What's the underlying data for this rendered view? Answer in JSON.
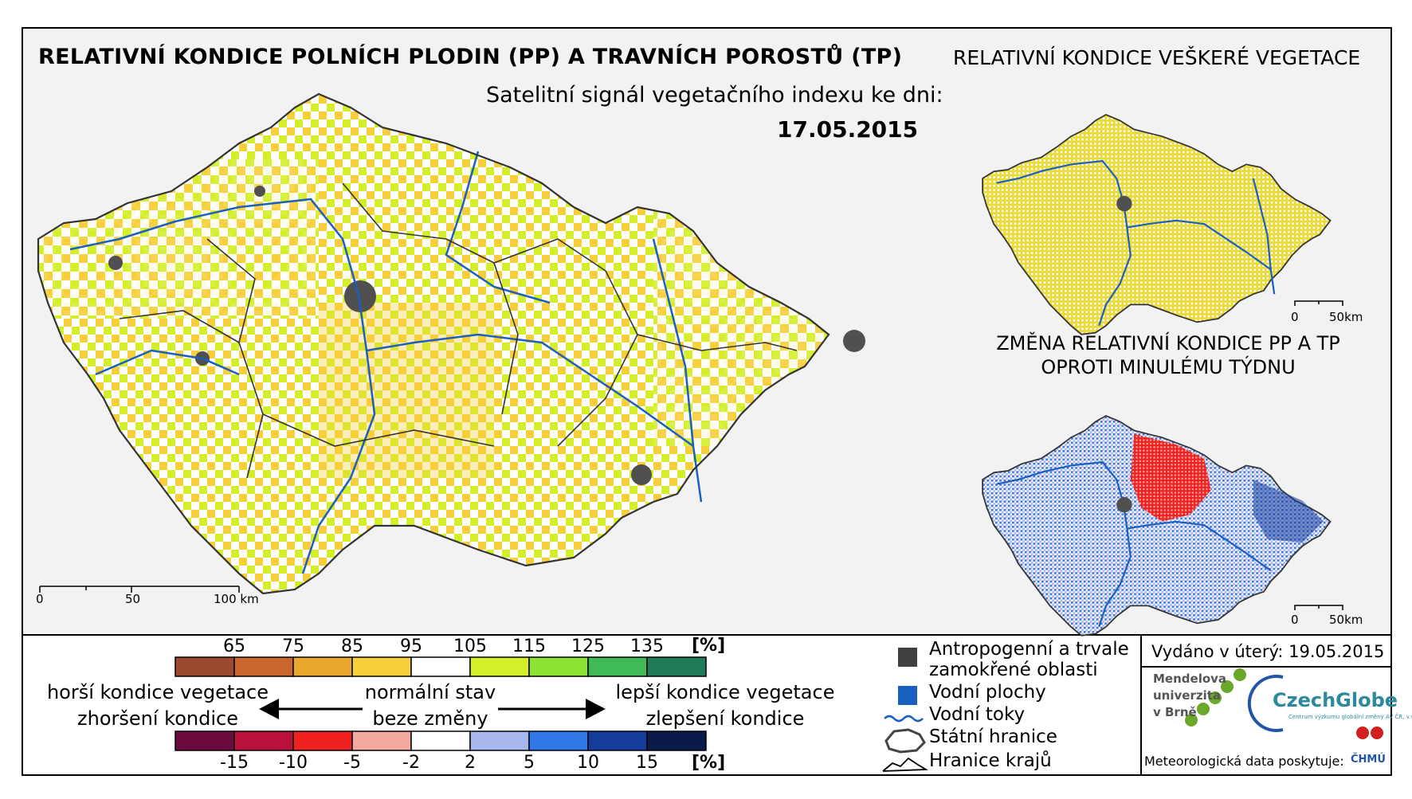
{
  "main_map": {
    "title": "RELATIVNÍ KONDICE POLNÍCH PLODIN (PP) A TRAVNÍCH POROSTŮ (TP)",
    "satellite_text": "Satelitní signál vegetačního indexu ke dni:",
    "date": "17.05.2015",
    "scale": {
      "labels": [
        "0",
        "50",
        "100 km"
      ]
    }
  },
  "veg_map": {
    "title": "RELATIVNÍ KONDICE VEŠKERÉ VEGETACE",
    "scale": {
      "labels": [
        "0",
        "50km"
      ]
    }
  },
  "change_map": {
    "title_line1": "ZMĚNA RELATIVNÍ KONDICE PP A TP",
    "title_line2": "OPROTI MINULÉMU TÝDNU",
    "scale": {
      "labels": [
        "0",
        "50km"
      ]
    }
  },
  "legend_condition": {
    "ticks": [
      "65",
      "75",
      "85",
      "95",
      "105",
      "115",
      "125",
      "135"
    ],
    "unit": "[%]",
    "colors": [
      "#9b4a32",
      "#c8662e",
      "#e8a82e",
      "#f7cf3a",
      "#ffffff",
      "#d4ee2a",
      "#8be334",
      "#3fba55",
      "#1f7a58"
    ]
  },
  "legend_change": {
    "ticks": [
      "-15",
      "-10",
      "-5",
      "-2",
      "2",
      "5",
      "10",
      "15"
    ],
    "unit": "[%]",
    "colors": [
      "#6b0a3c",
      "#b8123c",
      "#f02020",
      "#f5a8a0",
      "#ffffff",
      "#a8b8ee",
      "#2e78e8",
      "#143c9c",
      "#0a1a4a"
    ]
  },
  "legend_text": {
    "worse_line1": "horší kondice vegetace",
    "worse_line2": "zhoršení kondice",
    "normal_line1": "normální stav",
    "normal_line2": "beze změny",
    "better_line1": "lepší kondice vegetace",
    "better_line2": "zlepšení kondice"
  },
  "symbol_legend": {
    "items": [
      {
        "label_line1": "Antropogenní a trvale",
        "label_line2": "zamokřené oblasti",
        "color": "#404040"
      },
      {
        "label": "Vodní plochy",
        "color": "#1b5fbf"
      },
      {
        "label": "Vodní toky",
        "color": "#1b5fbf"
      },
      {
        "label": "Státní hranice"
      },
      {
        "label": "Hranice krajů"
      }
    ]
  },
  "info": {
    "issued": "Vydáno v úterý: 19.05.2015",
    "mendel_line1": "Mendelova",
    "mendel_line2": "univerzita",
    "mendel_line3": "v Brně",
    "czechglobe": "CzechGlobe",
    "czechglobe_sub": "Centrum výzkumu globální změny AV ČR, v.v.i.",
    "meteo": "Meteorologická data poskytuje:",
    "chmu": "ČHMÚ"
  }
}
